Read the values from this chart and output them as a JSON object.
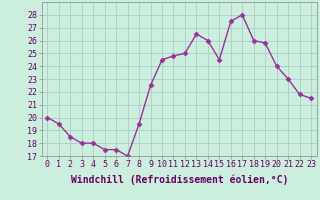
{
  "x": [
    0,
    1,
    2,
    3,
    4,
    5,
    6,
    7,
    8,
    9,
    10,
    11,
    12,
    13,
    14,
    15,
    16,
    17,
    18,
    19,
    20,
    21,
    22,
    23
  ],
  "y": [
    20.0,
    19.5,
    18.5,
    18.0,
    18.0,
    17.5,
    17.5,
    17.0,
    19.5,
    22.5,
    24.5,
    24.8,
    25.0,
    26.5,
    26.0,
    24.5,
    27.5,
    28.0,
    26.0,
    25.8,
    24.0,
    23.0,
    21.8,
    21.5
  ],
  "line_color": "#993399",
  "marker": "D",
  "marker_size": 2.5,
  "bg_color": "#cceedd",
  "grid_color": "#aacccc",
  "xlabel": "Windchill (Refroidissement éolien,°C)",
  "xlabel_fontsize": 7,
  "ylim": [
    17,
    29
  ],
  "yticks": [
    17,
    18,
    19,
    20,
    21,
    22,
    23,
    24,
    25,
    26,
    27,
    28
  ],
  "xticks": [
    0,
    1,
    2,
    3,
    4,
    5,
    6,
    7,
    8,
    9,
    10,
    11,
    12,
    13,
    14,
    15,
    16,
    17,
    18,
    19,
    20,
    21,
    22,
    23
  ],
  "tick_fontsize": 6,
  "line_width": 1.0
}
